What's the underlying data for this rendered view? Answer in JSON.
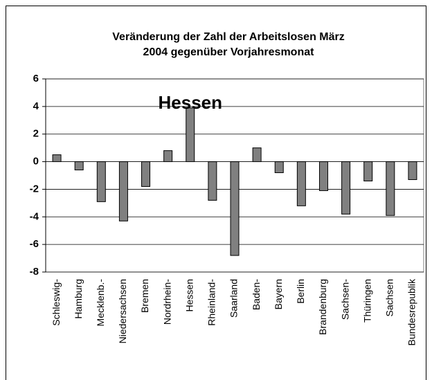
{
  "chart_data": {
    "type": "bar",
    "title": [
      "Veränderung der Zahl der Arbeitslosen März",
      "2004 gegenüber Vorjahresmonat"
    ],
    "annotations": [
      {
        "text": "Hessen"
      }
    ],
    "categories": [
      "Schleswig-",
      "Hamburg",
      "Mecklenb.-",
      "Niedersachsen",
      "Bremen",
      "Nordrhein-",
      "Hessen",
      "Rheinland-",
      "Saarland",
      "Baden-",
      "Bayern",
      "Berlin",
      "Brandenburg",
      "Sachsen-",
      "Thüringen",
      "Sachsen",
      "Bundesrepublik"
    ],
    "values": [
      0.5,
      -0.6,
      -2.9,
      -4.3,
      -1.8,
      0.8,
      3.9,
      -2.8,
      -6.8,
      1.0,
      -0.8,
      -3.2,
      -2.1,
      -3.8,
      -1.4,
      -3.9,
      -1.3
    ],
    "color": "#808080",
    "ylim": [
      -8,
      6
    ],
    "yticks": [
      -8,
      -6,
      -4,
      -2,
      0,
      2,
      4,
      6
    ],
    "grid": true
  }
}
